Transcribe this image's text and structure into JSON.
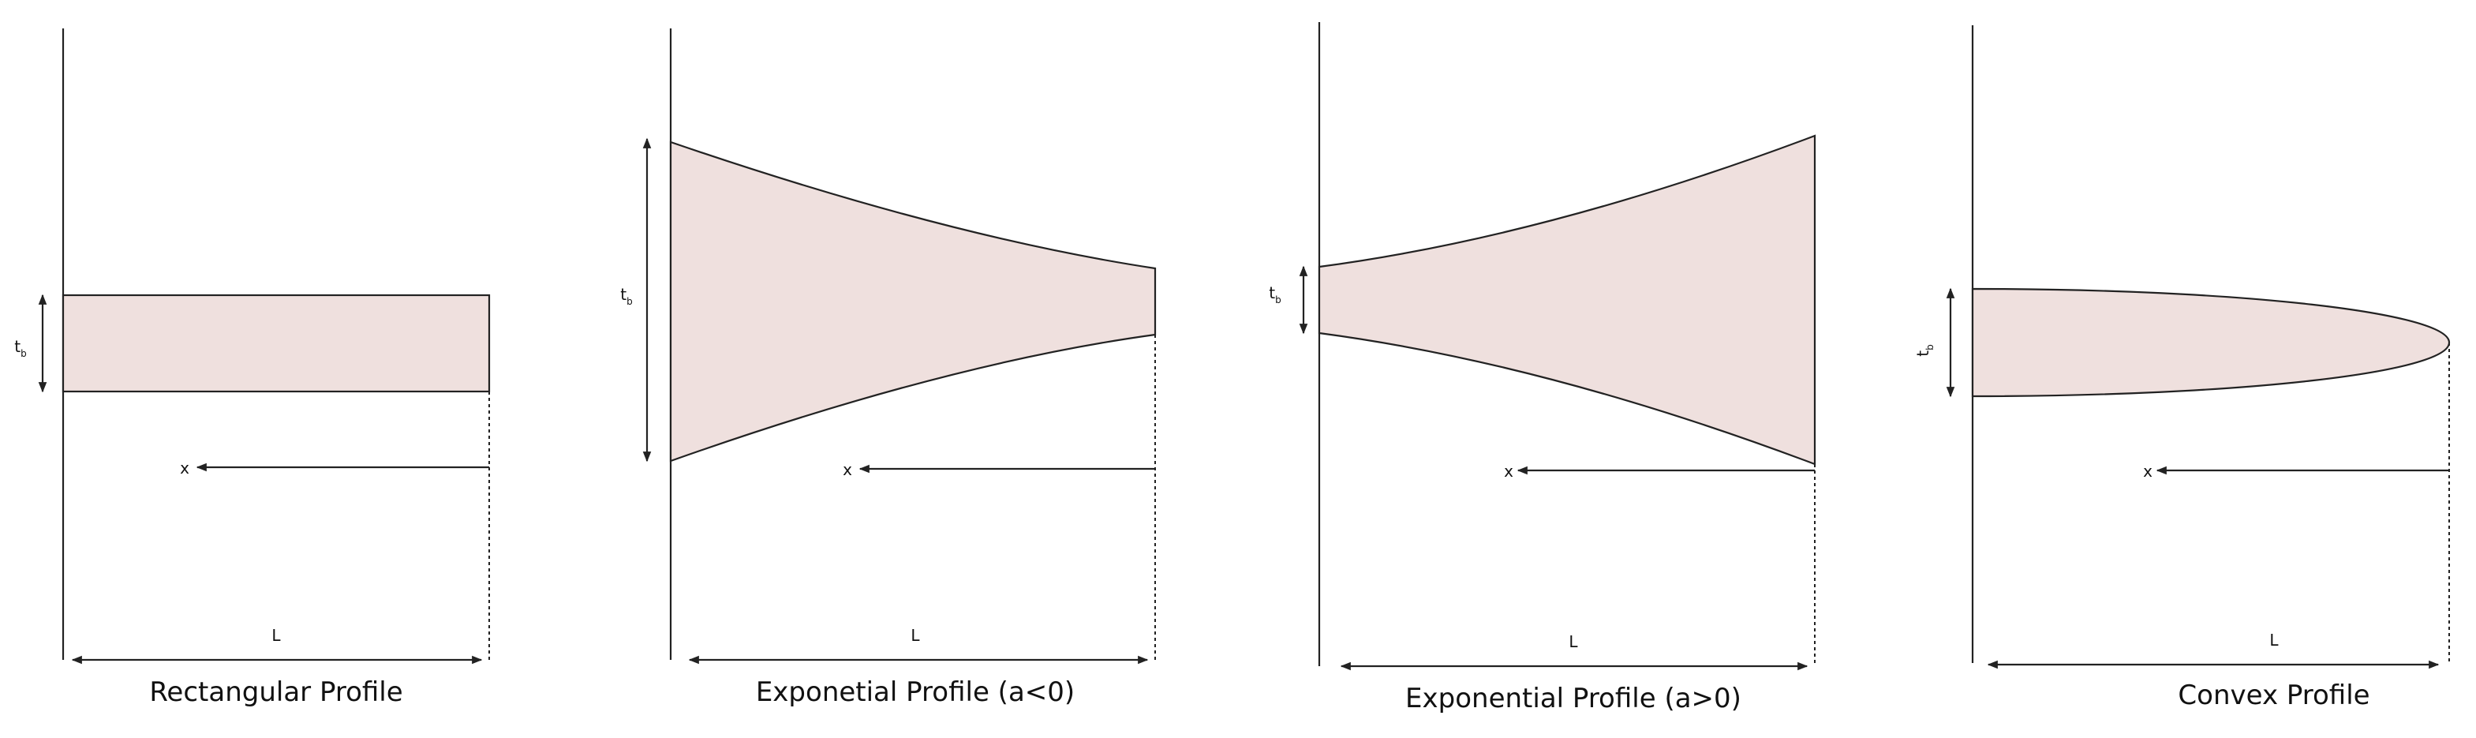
{
  "panels": [
    {
      "thickness_label": {
        "main": "t",
        "sub": "b"
      },
      "x_label": "x",
      "length_label": "L",
      "caption": "Rectangular Profile"
    },
    {
      "thickness_label": {
        "main": "t",
        "sub": "b"
      },
      "x_label": "x",
      "length_label": "L",
      "caption": "Exponetial Profile (a<0)"
    },
    {
      "thickness_label": {
        "main": "t",
        "sub": "b"
      },
      "x_label": "x",
      "length_label": "L",
      "caption": "Exponential Profile (a>0)"
    },
    {
      "thickness_label": {
        "main": "t",
        "sub": "b"
      },
      "x_label": "x",
      "length_label": "L",
      "caption": "Convex Profile"
    }
  ]
}
